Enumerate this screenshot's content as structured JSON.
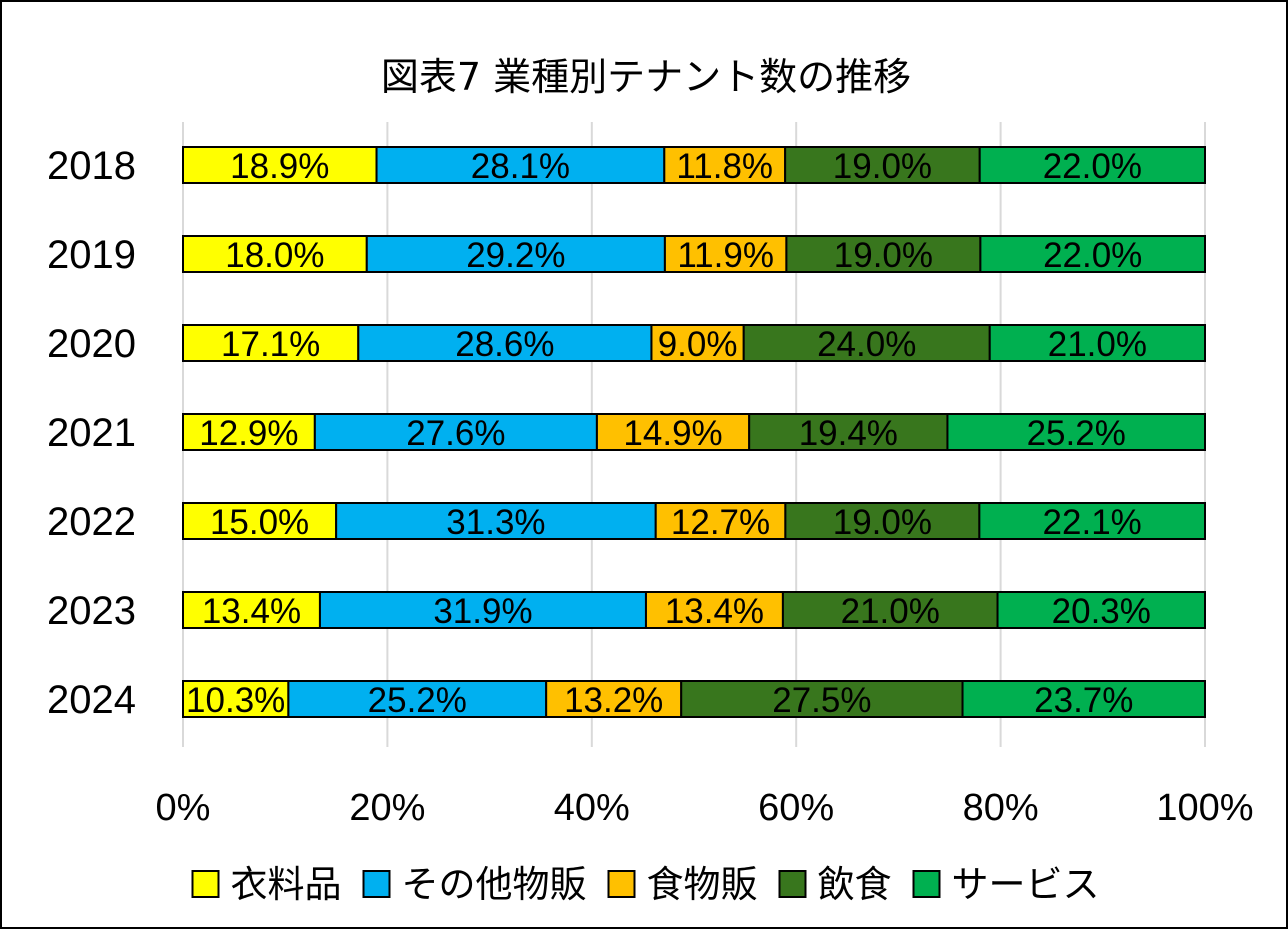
{
  "chart_data": {
    "type": "bar",
    "orientation": "horizontal",
    "stacked": "percent",
    "title": "図表7 業種別テナント数の推移",
    "categories": [
      "2018",
      "2019",
      "2020",
      "2021",
      "2022",
      "2023",
      "2024"
    ],
    "series": [
      {
        "name": "衣料品",
        "color": "#FFFF00",
        "values": [
          18.9,
          18.0,
          17.1,
          12.9,
          15.0,
          13.4,
          10.3
        ]
      },
      {
        "name": "その他物販",
        "color": "#00B0F0",
        "values": [
          28.1,
          29.2,
          28.6,
          27.6,
          31.3,
          31.9,
          25.2
        ]
      },
      {
        "name": "食物販",
        "color": "#FFC000",
        "values": [
          11.8,
          11.9,
          9.0,
          14.9,
          12.7,
          13.4,
          13.2
        ]
      },
      {
        "name": "飲食",
        "color": "#38761D",
        "values": [
          19.0,
          19.0,
          24.0,
          19.4,
          19.0,
          21.0,
          27.5
        ]
      },
      {
        "name": "サービス",
        "color": "#00B050",
        "values": [
          22.0,
          22.0,
          21.0,
          25.2,
          22.1,
          20.3,
          23.7
        ]
      }
    ],
    "value_format": "{v}%",
    "xlim": [
      0,
      100
    ],
    "xticks": [
      "0%",
      "20%",
      "40%",
      "60%",
      "80%",
      "100%"
    ],
    "grid": "vertical",
    "legend": "bottom"
  }
}
